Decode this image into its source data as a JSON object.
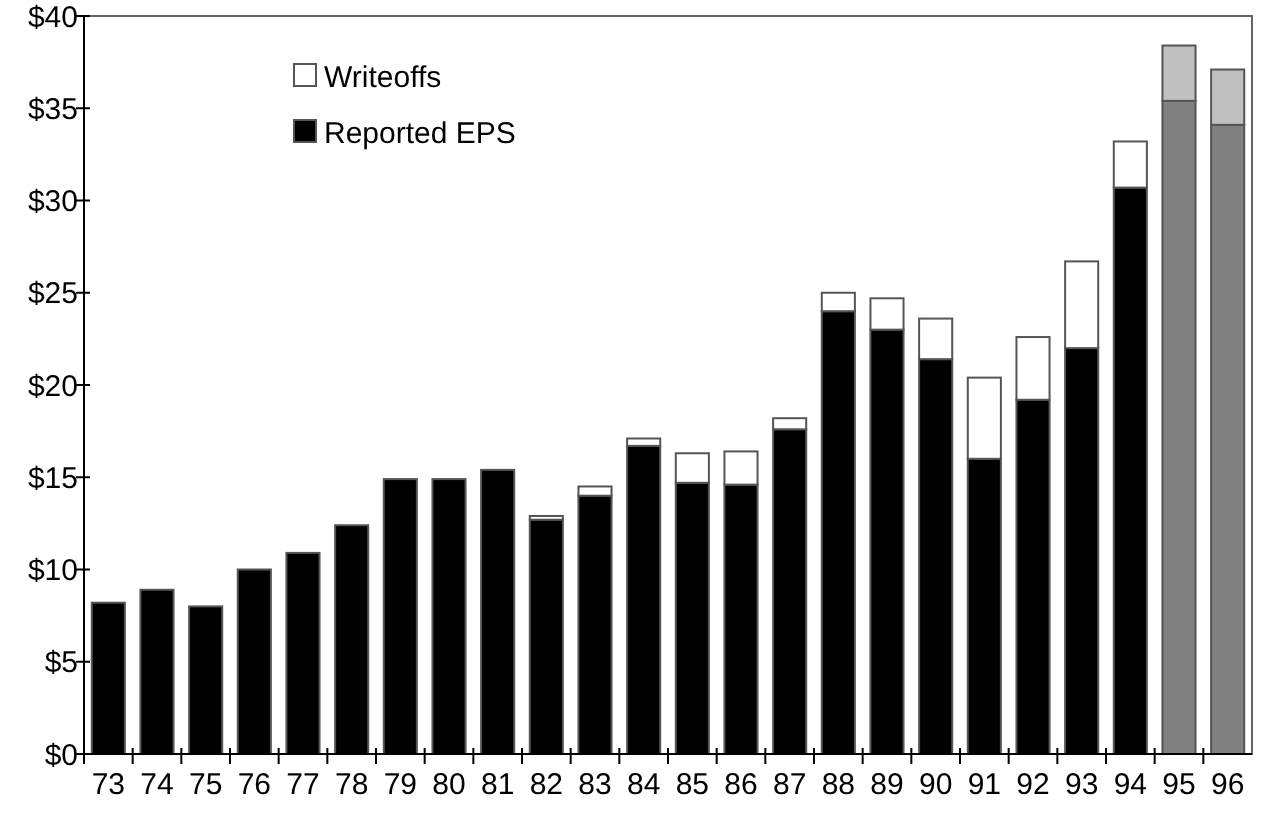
{
  "chart_data": {
    "type": "bar",
    "stacked": true,
    "categories": [
      "73",
      "74",
      "75",
      "76",
      "77",
      "78",
      "79",
      "80",
      "81",
      "82",
      "83",
      "84",
      "85",
      "86",
      "87",
      "88",
      "89",
      "90",
      "91",
      "92",
      "93",
      "94",
      "95",
      "96"
    ],
    "series": [
      {
        "name": "Reported EPS",
        "color": "#000000",
        "colors": [
          "#000000",
          "#000000",
          "#000000",
          "#000000",
          "#000000",
          "#000000",
          "#000000",
          "#000000",
          "#000000",
          "#000000",
          "#000000",
          "#000000",
          "#000000",
          "#000000",
          "#000000",
          "#000000",
          "#000000",
          "#000000",
          "#000000",
          "#000000",
          "#000000",
          "#000000",
          "#808080",
          "#808080"
        ],
        "values": [
          8.2,
          8.9,
          8.0,
          10.0,
          10.9,
          12.4,
          14.9,
          14.9,
          15.4,
          12.7,
          14.0,
          16.7,
          14.7,
          14.6,
          17.6,
          24.0,
          23.0,
          21.4,
          16.0,
          19.2,
          22.0,
          30.7,
          35.4,
          34.1
        ]
      },
      {
        "name": "Writeoffs",
        "color": "#ffffff",
        "colors": [
          null,
          null,
          null,
          null,
          null,
          null,
          null,
          null,
          null,
          "#ffffff",
          "#ffffff",
          "#ffffff",
          "#ffffff",
          "#ffffff",
          "#ffffff",
          "#ffffff",
          "#ffffff",
          "#ffffff",
          "#ffffff",
          "#ffffff",
          "#ffffff",
          "#ffffff",
          "#c0c0c0",
          "#c0c0c0"
        ],
        "values": [
          null,
          null,
          null,
          null,
          null,
          null,
          null,
          null,
          null,
          0.2,
          0.5,
          0.4,
          1.6,
          1.8,
          0.6,
          1.0,
          1.7,
          2.2,
          4.4,
          3.4,
          4.7,
          2.5,
          3.0,
          3.0
        ]
      }
    ],
    "ylim": [
      0,
      40
    ],
    "yticks": [
      {
        "value": 0,
        "label": "$0"
      },
      {
        "value": 5,
        "label": "$5"
      },
      {
        "value": 10,
        "label": "$10"
      },
      {
        "value": 15,
        "label": "$15"
      },
      {
        "value": 20,
        "label": "$20"
      },
      {
        "value": 25,
        "label": "$25"
      },
      {
        "value": 30,
        "label": "$30"
      },
      {
        "value": 35,
        "label": "$35"
      },
      {
        "value": 40,
        "label": "$40"
      }
    ],
    "grid": false,
    "legend": "top left"
  }
}
